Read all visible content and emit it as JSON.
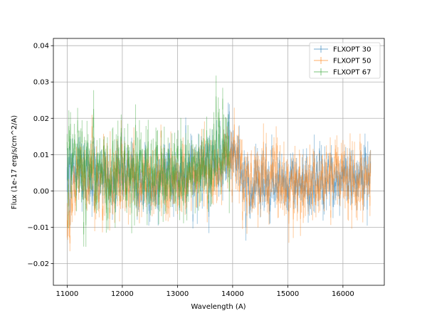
{
  "chart_data": {
    "type": "line",
    "title": "",
    "xlabel": "Wavelength (A)",
    "ylabel": "Flux (1e-17 erg/s/cm^2/A)",
    "xlim": [
      10750,
      16750
    ],
    "ylim": [
      -0.026,
      0.042
    ],
    "xticks": [
      11000,
      12000,
      13000,
      14000,
      15000,
      16000
    ],
    "xtick_labels": [
      "11000",
      "12000",
      "13000",
      "14000",
      "15000",
      "16000"
    ],
    "yticks": [
      -0.02,
      -0.01,
      0.0,
      0.01,
      0.02,
      0.03,
      0.04
    ],
    "ytick_labels": [
      "−0.02",
      "−0.01",
      "0.00",
      "0.01",
      "0.02",
      "0.03",
      "0.04"
    ],
    "grid": true,
    "legend_position": "top-right",
    "colors": [
      "#1f77b4",
      "#ff7f0e",
      "#2ca02c"
    ],
    "series": [
      {
        "name": "FLXOPT 30",
        "x_range": [
          11000,
          16500
        ],
        "profile": [
          [
            11000,
            0.004
          ],
          [
            11200,
            0.007
          ],
          [
            11400,
            0.005
          ],
          [
            11600,
            0.004
          ],
          [
            11800,
            0.002
          ],
          [
            12000,
            0.003
          ],
          [
            12200,
            0.004
          ],
          [
            12400,
            0.002
          ],
          [
            12600,
            0.003
          ],
          [
            12800,
            0.005
          ],
          [
            13000,
            0.004
          ],
          [
            13200,
            0.005
          ],
          [
            13400,
            0.005
          ],
          [
            13600,
            0.006
          ],
          [
            13800,
            0.008
          ],
          [
            14000,
            0.011
          ],
          [
            14100,
            0.01
          ],
          [
            14150,
            0.003
          ],
          [
            14400,
            0.001
          ],
          [
            14800,
            0.001
          ],
          [
            15200,
            0.002
          ],
          [
            15600,
            0.003
          ],
          [
            16000,
            0.004
          ],
          [
            16500,
            0.004
          ]
        ],
        "scatter": 0.004,
        "error_bar": 0.003
      },
      {
        "name": "FLXOPT 50",
        "x_range": [
          11000,
          16500
        ],
        "profile": [
          [
            11000,
            -0.006
          ],
          [
            11100,
            0.0
          ],
          [
            11200,
            0.004
          ],
          [
            11400,
            0.003
          ],
          [
            11600,
            0.002
          ],
          [
            11800,
            0.001
          ],
          [
            12000,
            0.003
          ],
          [
            12200,
            0.003
          ],
          [
            12400,
            0.002
          ],
          [
            12600,
            0.002
          ],
          [
            12800,
            0.003
          ],
          [
            13000,
            0.003
          ],
          [
            13200,
            0.004
          ],
          [
            13400,
            0.004
          ],
          [
            13600,
            0.005
          ],
          [
            13800,
            0.007
          ],
          [
            14000,
            0.01
          ],
          [
            14150,
            0.008
          ],
          [
            14200,
            0.002
          ],
          [
            14600,
            0.003
          ],
          [
            15000,
            0.002
          ],
          [
            15400,
            0.002
          ],
          [
            15800,
            0.003
          ],
          [
            16200,
            0.003
          ],
          [
            16500,
            0.002
          ]
        ],
        "scatter": 0.0045,
        "error_bar": 0.0035
      },
      {
        "name": "FLXOPT 67",
        "x_range": [
          11000,
          13950
        ],
        "profile": [
          [
            11000,
            0.012
          ],
          [
            11100,
            0.01
          ],
          [
            11200,
            0.008
          ],
          [
            11400,
            0.006
          ],
          [
            11600,
            0.005
          ],
          [
            11800,
            0.004
          ],
          [
            12000,
            0.004
          ],
          [
            12200,
            0.005
          ],
          [
            12400,
            0.004
          ],
          [
            12600,
            0.005
          ],
          [
            12800,
            0.006
          ],
          [
            13000,
            0.005
          ],
          [
            13200,
            0.006
          ],
          [
            13400,
            0.006
          ],
          [
            13600,
            0.009
          ],
          [
            13800,
            0.012
          ],
          [
            13950,
            0.011
          ]
        ],
        "scatter": 0.0055,
        "error_bar": 0.004
      }
    ]
  }
}
